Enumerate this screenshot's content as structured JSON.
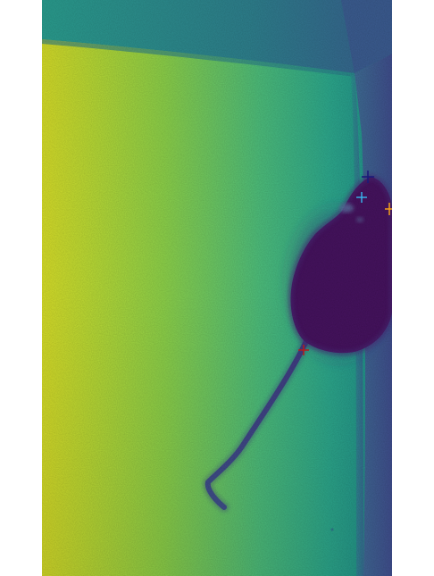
{
  "image": {
    "colormap": "viridis",
    "subject": "mouse",
    "colors": {
      "bright_floor": "#D6DE2A",
      "mid_floor": "#46B98A",
      "wall_teal": "#2E8C8C",
      "wall_blue": "#3B5A92",
      "mouse_body": "#46135F",
      "tail": "#3A4A85"
    }
  },
  "markers": [
    {
      "name": "navy-cross-marker",
      "color": "#1B1A7A"
    },
    {
      "name": "cyan-cross-marker",
      "color": "#38B8F0"
    },
    {
      "name": "orange-cross-marker",
      "color": "#F7A21A"
    },
    {
      "name": "red-cross-marker",
      "color": "#B41C1C"
    }
  ]
}
